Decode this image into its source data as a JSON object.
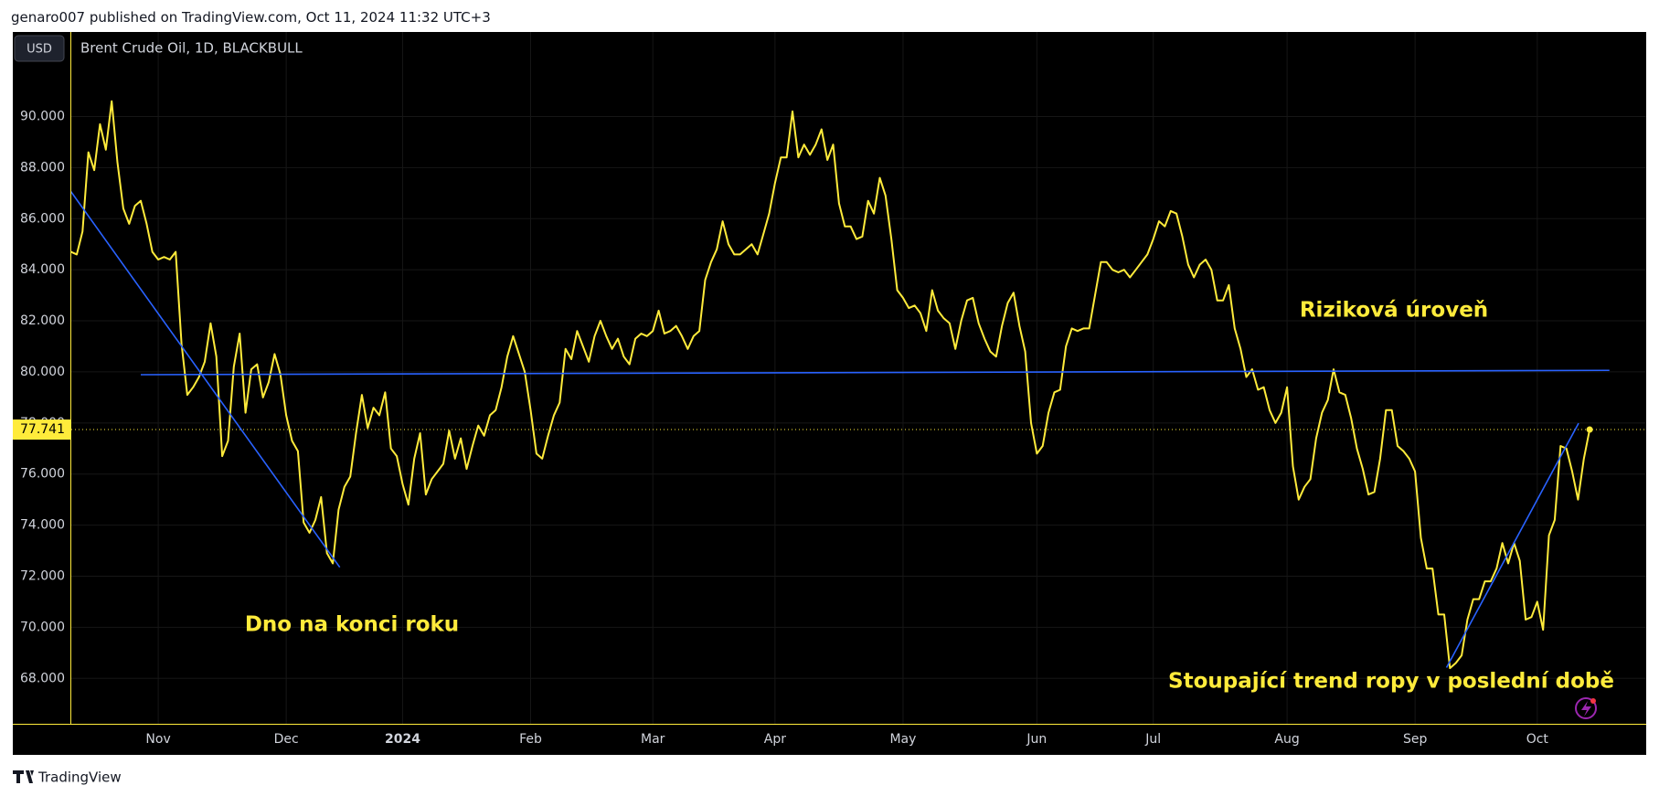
{
  "header": {
    "text": "genaro007 published on TradingView.com, Oct 11, 2024 11:32 UTC+3",
    "currency": "USD"
  },
  "footer": {
    "brand": "TradingView"
  },
  "chart_data": {
    "type": "line",
    "categories": [
      null,
      null,
      null,
      null,
      null,
      null,
      null,
      null,
      null,
      null,
      null,
      null,
      null,
      null,
      null,
      "Nov",
      null,
      null,
      null,
      null,
      null,
      null,
      null,
      null,
      null,
      null,
      null,
      null,
      null,
      null,
      null,
      null,
      null,
      null,
      null,
      null,
      null,
      "Dec",
      null,
      null,
      null,
      null,
      null,
      null,
      null,
      null,
      null,
      null,
      null,
      null,
      null,
      null,
      null,
      null,
      null,
      null,
      null,
      "2024",
      null,
      null,
      null,
      null,
      null,
      null,
      null,
      null,
      null,
      null,
      null,
      null,
      null,
      null,
      null,
      null,
      null,
      null,
      null,
      null,
      null,
      "Feb",
      null,
      null,
      null,
      null,
      null,
      null,
      null,
      null,
      null,
      null,
      null,
      null,
      null,
      null,
      null,
      null,
      null,
      null,
      null,
      null,
      "Mar",
      null,
      null,
      null,
      null,
      null,
      null,
      null,
      null,
      null,
      null,
      null,
      null,
      null,
      null,
      null,
      null,
      null,
      null,
      null,
      null,
      "Apr",
      null,
      null,
      null,
      null,
      null,
      null,
      null,
      null,
      null,
      null,
      null,
      null,
      null,
      null,
      null,
      null,
      null,
      null,
      null,
      null,
      null,
      "May",
      null,
      null,
      null,
      null,
      null,
      null,
      null,
      null,
      null,
      null,
      null,
      null,
      null,
      null,
      null,
      null,
      null,
      null,
      null,
      null,
      null,
      null,
      "Jun",
      null,
      null,
      null,
      null,
      null,
      null,
      null,
      null,
      null,
      null,
      null,
      null,
      null,
      null,
      null,
      null,
      null,
      null,
      null,
      "Jul",
      null,
      null,
      null,
      null,
      null,
      null,
      null,
      null,
      null,
      null,
      null,
      null,
      null,
      null,
      null,
      null,
      null,
      null,
      null,
      null,
      null,
      null,
      "Aug",
      null,
      null,
      null,
      null,
      null,
      null,
      null,
      null,
      null,
      null,
      null,
      null,
      null,
      null,
      null,
      null,
      null,
      null,
      null,
      null,
      null,
      "Sep",
      null,
      null,
      null,
      null,
      null,
      null,
      null,
      null,
      null,
      null,
      null,
      null,
      null,
      null,
      null,
      null,
      null,
      null,
      null,
      null,
      "Oct",
      null,
      null,
      null,
      null,
      null,
      null,
      null,
      null,
      null
    ],
    "series": [
      {
        "name": "Brent Crude Oil, 1D, BLACKBULL",
        "color": "#ffeb3b",
        "values": [
          84.7,
          84.6,
          85.5,
          88.6,
          87.9,
          89.7,
          88.7,
          90.6,
          88.2,
          86.4,
          85.8,
          86.5,
          86.7,
          85.8,
          84.7,
          84.4,
          84.5,
          84.4,
          84.7,
          81.1,
          79.1,
          79.4,
          79.8,
          80.4,
          81.9,
          80.6,
          76.7,
          77.3,
          80.2,
          81.5,
          78.4,
          80.1,
          80.3,
          79.0,
          79.6,
          80.7,
          79.9,
          78.3,
          77.3,
          76.9,
          74.1,
          73.7,
          74.2,
          75.1,
          72.9,
          72.5,
          74.6,
          75.5,
          75.9,
          77.6,
          79.1,
          77.8,
          78.6,
          78.3,
          79.2,
          77.0,
          76.7,
          75.6,
          74.8,
          76.6,
          77.6,
          75.2,
          75.8,
          76.1,
          76.4,
          77.7,
          76.6,
          77.4,
          76.2,
          77.1,
          77.9,
          77.5,
          78.3,
          78.5,
          79.4,
          80.6,
          81.4,
          80.7,
          80.0,
          78.5,
          76.8,
          76.6,
          77.5,
          78.3,
          78.8,
          80.9,
          80.5,
          81.6,
          81.0,
          80.4,
          81.4,
          82.0,
          81.4,
          80.9,
          81.3,
          80.6,
          80.3,
          81.3,
          81.5,
          81.4,
          81.6,
          82.4,
          81.5,
          81.6,
          81.8,
          81.4,
          80.9,
          81.4,
          81.6,
          83.6,
          84.3,
          84.8,
          85.9,
          85.0,
          84.6,
          84.6,
          84.8,
          85.0,
          84.6,
          85.4,
          86.2,
          87.4,
          88.4,
          88.4,
          90.2,
          88.4,
          88.9,
          88.5,
          88.9,
          89.5,
          88.3,
          88.9,
          86.6,
          85.7,
          85.7,
          85.2,
          85.3,
          86.7,
          86.2,
          87.6,
          86.9,
          85.2,
          83.2,
          82.9,
          82.5,
          82.6,
          82.3,
          81.6,
          83.2,
          82.4,
          82.1,
          81.9,
          80.9,
          82.0,
          82.8,
          82.9,
          81.9,
          81.3,
          80.8,
          80.6,
          81.8,
          82.7,
          83.1,
          81.8,
          80.8,
          78.0,
          76.8,
          77.1,
          78.4,
          79.2,
          79.3,
          81.0,
          81.7,
          81.6,
          81.7,
          81.7,
          83.0,
          84.3,
          84.3,
          84.0,
          83.9,
          84.0,
          83.7,
          84.0,
          84.3,
          84.6,
          85.2,
          85.9,
          85.7,
          86.3,
          86.2,
          85.3,
          84.2,
          83.7,
          84.2,
          84.4,
          84.0,
          82.8,
          82.8,
          83.4,
          81.7,
          80.9,
          79.8,
          80.1,
          79.3,
          79.4,
          78.5,
          78.0,
          78.4,
          79.4,
          76.3,
          75.0,
          75.5,
          75.8,
          77.4,
          78.4,
          78.9,
          80.1,
          79.2,
          79.1,
          78.2,
          77.0,
          76.2,
          75.2,
          75.3,
          76.6,
          78.5,
          78.5,
          77.1,
          76.9,
          76.6,
          76.1,
          73.5,
          72.3,
          72.3,
          70.5,
          70.5,
          68.4,
          68.6,
          68.9,
          70.3,
          71.1,
          71.1,
          71.8,
          71.8,
          72.3,
          73.3,
          72.5,
          73.3,
          72.6,
          70.3,
          70.4,
          71.0,
          69.9,
          73.6,
          74.2,
          77.1,
          77.0,
          76.1,
          75.0,
          76.6,
          77.741
        ]
      }
    ],
    "ylim": [
      66.22,
      93.31
    ],
    "yticks": [
      {
        "value": 68,
        "label": "68.000"
      },
      {
        "value": 70,
        "label": "70.000"
      },
      {
        "value": 72,
        "label": "72.000"
      },
      {
        "value": 74,
        "label": "74.000"
      },
      {
        "value": 76,
        "label": "76.000"
      },
      {
        "value": 78,
        "label": "78.000"
      },
      {
        "value": 80,
        "label": "80.000"
      },
      {
        "value": 82,
        "label": "82.000"
      },
      {
        "value": 84,
        "label": "84.000"
      },
      {
        "value": 86,
        "label": "86.000"
      },
      {
        "value": 88,
        "label": "88.000"
      },
      {
        "value": 90,
        "label": "90.000"
      }
    ],
    "grid": true,
    "trend_lines": [
      {
        "color": "#2962ff",
        "start": [
          0,
          87.06
        ],
        "end": [
          46.2,
          72.35
        ]
      },
      {
        "color": "#2962ff",
        "start": [
          12,
          79.89
        ],
        "end": [
          264.4,
          80.06
        ]
      },
      {
        "color": "#2962ff",
        "start": [
          236.4,
          68.42
        ],
        "end": [
          259.1,
          77.99
        ]
      }
    ],
    "annotations": [
      "Riziková úroveň",
      "Dno na konci roku",
      "Stoupající trend ropy v poslední době"
    ]
  }
}
